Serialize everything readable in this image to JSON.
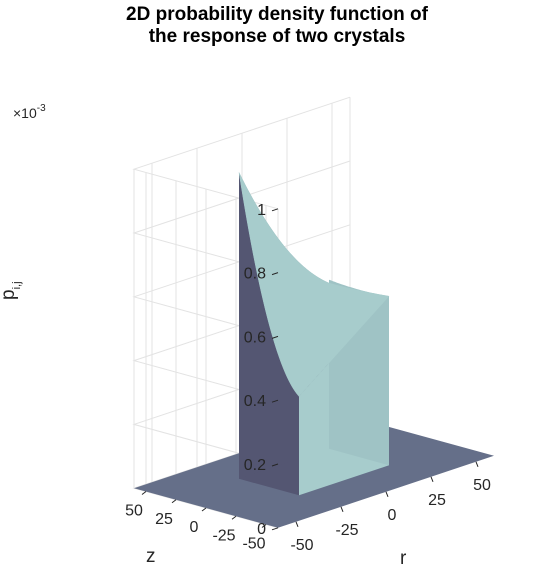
{
  "chart_data": {
    "type": "surface",
    "title_lines": [
      "2D probability density function of",
      "the response of two crystals"
    ],
    "xlabel": "r",
    "ylabel": "z",
    "zlabel": "p",
    "zlabel_subscript": "i,j",
    "z_exponent": "×10",
    "z_exponent_power": "-3",
    "x_ticks": [
      "-50",
      "-25",
      "0",
      "25",
      "50"
    ],
    "y_ticks": [
      "-50",
      "-25",
      "0",
      "25",
      "50"
    ],
    "z_ticks": [
      "0",
      "0.2",
      "0.4",
      "0.6",
      "0.8",
      "1"
    ],
    "xlim": [
      -60,
      60
    ],
    "ylim": [
      -60,
      60
    ],
    "zlim": [
      0,
      0.001
    ],
    "grid": true,
    "support": {
      "r": [
        -25,
        25
      ],
      "z": [
        -25,
        25
      ]
    },
    "values": {
      "peak": 0.00096,
      "corner_r25_z-25": 0.00053,
      "corner_r-25_z-25": 0.00031,
      "outside": 0
    },
    "colors": {
      "front_face": "#a7cccc",
      "side_face": "#545672",
      "floor": "#656f89"
    }
  }
}
